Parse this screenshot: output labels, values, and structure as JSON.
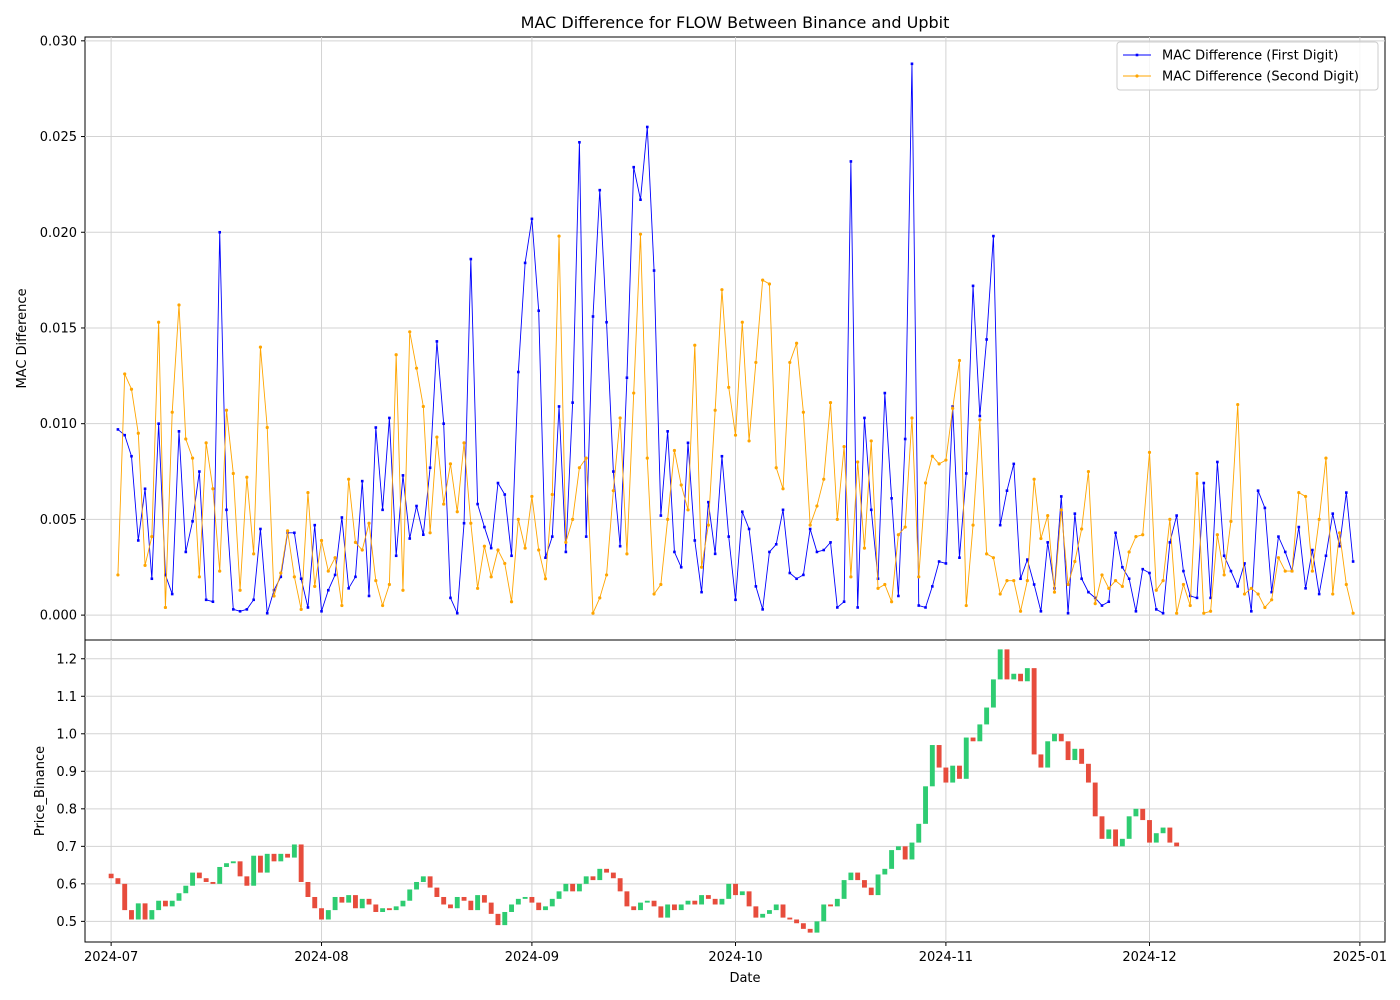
{
  "chart_data": [
    {
      "type": "line",
      "title": "MAC Difference for FLOW Between Binance and Upbit",
      "ylabel": "MAC Difference",
      "xlabel": "",
      "x_start": "2024-07-02",
      "x_step_days": 1,
      "ylim": [
        -0.0013,
        0.0302
      ],
      "yticks": [
        "0.000",
        "0.005",
        "0.010",
        "0.015",
        "0.020",
        "0.025",
        "0.030"
      ],
      "ytick_values": [
        0,
        0.005,
        0.01,
        0.015,
        0.02,
        0.025,
        0.03
      ],
      "grid": true,
      "legend_position": "top-right",
      "series": [
        {
          "name": "MAC Difference (First Digit)",
          "color": "#0000ff",
          "values": [
            0.0097,
            0.0094,
            0.0083,
            0.0039,
            0.0066,
            0.0019,
            0.01,
            0.0021,
            0.0011,
            0.0096,
            0.0033,
            0.0049,
            0.0075,
            0.0008,
            0.0007,
            0.02,
            0.0055,
            0.0003,
            0.0002,
            0.0003,
            0.0008,
            0.0045,
            0.0001,
            0.0013,
            0.002,
            0.0043,
            0.0043,
            0.0019,
            0.0004,
            0.0047,
            0.0002,
            0.0013,
            0.0021,
            0.0051,
            0.0014,
            0.002,
            0.007,
            0.001,
            0.0098,
            0.0055,
            0.0103,
            0.0031,
            0.0073,
            0.004,
            0.0057,
            0.0042,
            0.0077,
            0.0143,
            0.01,
            0.0009,
            0.0001,
            0.0048,
            0.0186,
            0.0058,
            0.0046,
            0.0035,
            0.0069,
            0.0063,
            0.0031,
            0.0127,
            0.0184,
            0.0207,
            0.0159,
            0.003,
            0.0041,
            0.0109,
            0.0033,
            0.0111,
            0.0247,
            0.0041,
            0.0156,
            0.0222,
            0.0153,
            0.0075,
            0.0036,
            0.0124,
            0.0234,
            0.0217,
            0.0255,
            0.018,
            0.0052,
            0.0096,
            0.0033,
            0.0025,
            0.009,
            0.0039,
            0.0012,
            0.0059,
            0.0032,
            0.0083,
            0.0041,
            0.0008,
            0.0054,
            0.0045,
            0.0015,
            0.0003,
            0.0033,
            0.0037,
            0.0055,
            0.0022,
            0.0019,
            0.0021,
            0.0045,
            0.0033,
            0.0034,
            0.0038,
            0.0004,
            0.0007,
            0.0237,
            0.0004,
            0.0103,
            0.0055,
            0.0019,
            0.0116,
            0.0061,
            0.001,
            0.0092,
            0.0288,
            0.0005,
            0.0004,
            0.0015,
            0.0028,
            0.0027,
            0.0109,
            0.003,
            0.0074,
            0.0172,
            0.0104,
            0.0144,
            0.0198,
            0.0047,
            0.0065,
            0.0079,
            0.0019,
            0.0029,
            0.0016,
            0.0002,
            0.0038,
            0.0014,
            0.0062,
            0.0001,
            0.0053,
            0.0019,
            0.0012,
            0.0009,
            0.0005,
            0.0007,
            0.0043,
            0.0025,
            0.0019,
            0.0002,
            0.0024,
            0.0022,
            0.0003,
            0.0001,
            0.0038,
            0.0052,
            0.0023,
            0.001,
            0.0009,
            0.0069,
            0.0009,
            0.008,
            0.0031,
            0.0023,
            0.0015,
            0.0027,
            0.0002,
            0.0065,
            0.0056,
            0.0012,
            0.0041,
            0.0033,
            0.0023,
            0.0046,
            0.0014,
            0.0034,
            0.0011,
            0.0031,
            0.0053,
            0.0036,
            0.0064,
            0.0028
          ]
        },
        {
          "name": "MAC Difference (Second Digit)",
          "color": "#ffa500",
          "values": [
            0.0021,
            0.0126,
            0.0118,
            0.0095,
            0.0026,
            0.0041,
            0.0153,
            0.0004,
            0.0106,
            0.0162,
            0.0092,
            0.0082,
            0.002,
            0.009,
            0.0066,
            0.0023,
            0.0107,
            0.0074,
            0.0013,
            0.0072,
            0.0032,
            0.014,
            0.0098,
            0.001,
            0.0022,
            0.0044,
            0.002,
            0.0003,
            0.0064,
            0.0015,
            0.0039,
            0.0023,
            0.003,
            0.0005,
            0.0071,
            0.0038,
            0.0034,
            0.0048,
            0.0018,
            0.0005,
            0.0016,
            0.0136,
            0.0013,
            0.0148,
            0.0129,
            0.0109,
            0.0043,
            0.0093,
            0.0058,
            0.0079,
            0.0054,
            0.009,
            0.0048,
            0.0014,
            0.0036,
            0.002,
            0.0034,
            0.0027,
            0.0007,
            0.005,
            0.0035,
            0.0062,
            0.0034,
            0.0019,
            0.0063,
            0.0198,
            0.0038,
            0.005,
            0.0077,
            0.0082,
            0.0001,
            0.0009,
            0.0021,
            0.0065,
            0.0103,
            0.0032,
            0.0116,
            0.0199,
            0.0082,
            0.0011,
            0.0016,
            0.005,
            0.0086,
            0.0068,
            0.0055,
            0.0141,
            0.0025,
            0.0047,
            0.0107,
            0.017,
            0.0119,
            0.0094,
            0.0153,
            0.0091,
            0.0132,
            0.0175,
            0.0173,
            0.0077,
            0.0066,
            0.0132,
            0.0142,
            0.0106,
            0.0047,
            0.0057,
            0.0071,
            0.0111,
            0.005,
            0.0088,
            0.002,
            0.008,
            0.0035,
            0.0091,
            0.0014,
            0.0016,
            0.0007,
            0.0042,
            0.0046,
            0.0103,
            0.002,
            0.0069,
            0.0083,
            0.0079,
            0.0081,
            0.0108,
            0.0133,
            0.0005,
            0.0047,
            0.0102,
            0.0032,
            0.003,
            0.0011,
            0.0018,
            0.0018,
            0.0002,
            0.0018,
            0.0071,
            0.004,
            0.0052,
            0.0012,
            0.0055,
            0.0016,
            0.0028,
            0.0045,
            0.0075,
            0.0006,
            0.0021,
            0.0014,
            0.0018,
            0.0015,
            0.0033,
            0.0041,
            0.0042,
            0.0085,
            0.0013,
            0.0018,
            0.005,
            0.0001,
            0.0016,
            0.0005,
            0.0074,
            0.0001,
            0.0002,
            0.0042,
            0.0021,
            0.0049,
            0.011,
            0.0011,
            0.0014,
            0.0011,
            0.0004,
            0.0008,
            0.003,
            0.0023,
            0.0023,
            0.0064,
            0.0062,
            0.0023,
            0.005,
            0.0082,
            0.0011,
            0.0043,
            0.0016,
            0.0001
          ]
        }
      ]
    },
    {
      "type": "candlestick",
      "title": "",
      "ylabel": "Price_Binance",
      "xlabel": "Date",
      "x_start": "2024-07-01",
      "x_step_days": 1,
      "ylim": [
        0.445,
        1.25
      ],
      "yticks": [
        "0.5",
        "0.6",
        "0.7",
        "0.8",
        "0.9",
        "1.0",
        "1.1",
        "1.2"
      ],
      "ytick_values": [
        0.5,
        0.6,
        0.7,
        0.8,
        0.9,
        1.0,
        1.1,
        1.2
      ],
      "xticks": [
        "2024-07",
        "2024-08",
        "2024-09",
        "2024-10",
        "2024-11",
        "2024-12",
        "2025-01"
      ],
      "xtick_dates": [
        "2024-07-01",
        "2024-08-01",
        "2024-09-01",
        "2024-10-01",
        "2024-11-01",
        "2024-12-01",
        "2025-01-01"
      ],
      "grid": true,
      "up_color": "#2ecc71",
      "down_color": "#e74c3c",
      "close": [
        0.615,
        0.6,
        0.53,
        0.505,
        0.548,
        0.505,
        0.53,
        0.555,
        0.54,
        0.555,
        0.575,
        0.595,
        0.63,
        0.615,
        0.605,
        0.6,
        0.645,
        0.655,
        0.66,
        0.62,
        0.595,
        0.675,
        0.63,
        0.68,
        0.66,
        0.68,
        0.67,
        0.705,
        0.605,
        0.565,
        0.535,
        0.505,
        0.53,
        0.565,
        0.55,
        0.57,
        0.535,
        0.56,
        0.545,
        0.525,
        0.535,
        0.53,
        0.54,
        0.555,
        0.585,
        0.605,
        0.62,
        0.59,
        0.565,
        0.545,
        0.535,
        0.565,
        0.555,
        0.53,
        0.57,
        0.55,
        0.52,
        0.49,
        0.525,
        0.545,
        0.56,
        0.565,
        0.55,
        0.53,
        0.54,
        0.56,
        0.58,
        0.6,
        0.58,
        0.6,
        0.62,
        0.61,
        0.64,
        0.63,
        0.615,
        0.58,
        0.54,
        0.53,
        0.55,
        0.555,
        0.54,
        0.51,
        0.545,
        0.53,
        0.545,
        0.555,
        0.545,
        0.57,
        0.56,
        0.545,
        0.56,
        0.6,
        0.57,
        0.58,
        0.54,
        0.51,
        0.52,
        0.53,
        0.545,
        0.51,
        0.505,
        0.495,
        0.48,
        0.47,
        0.5,
        0.545,
        0.54,
        0.56,
        0.61,
        0.63,
        0.61,
        0.59,
        0.57,
        0.625,
        0.64,
        0.69,
        0.7,
        0.665,
        0.71,
        0.76,
        0.86,
        0.97,
        0.91,
        0.87,
        0.915,
        0.88,
        0.99,
        0.98,
        1.025,
        1.07,
        1.145,
        1.225,
        1.145,
        1.16,
        1.14,
        1.175,
        0.945,
        0.91,
        0.98,
        1.0,
        0.98,
        0.93,
        0.96,
        0.92,
        0.87,
        0.78,
        0.72,
        0.745,
        0.7,
        0.72,
        0.78,
        0.8,
        0.77,
        0.71,
        0.735,
        0.75,
        0.71,
        0.7
      ]
    }
  ]
}
